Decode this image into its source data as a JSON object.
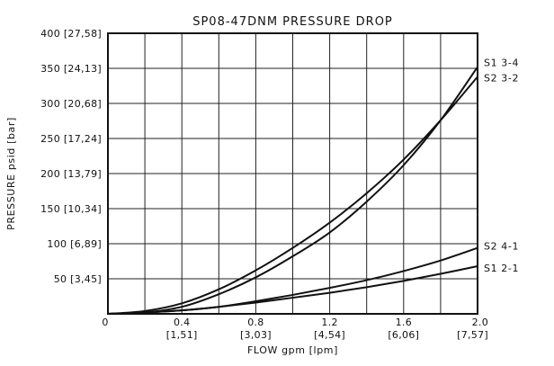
{
  "chart_data": {
    "type": "line",
    "title": "SP08-47DNM PRESSURE DROP",
    "xlabel": "FLOW gpm [lpm]",
    "ylabel": "PRESSURE psid [bar]",
    "xlim": [
      0,
      2.0
    ],
    "ylim": [
      0,
      400
    ],
    "grid": true,
    "x_ticks": [
      {
        "value": 0,
        "label": "0",
        "sublabel": ""
      },
      {
        "value": 0.4,
        "label": "0.4",
        "sublabel": "[1,51]"
      },
      {
        "value": 0.8,
        "label": "0.8",
        "sublabel": "[3,03]"
      },
      {
        "value": 1.2,
        "label": "1.2",
        "sublabel": "[4,54]"
      },
      {
        "value": 1.6,
        "label": "1.6",
        "sublabel": "[6,06]"
      },
      {
        "value": 2.0,
        "label": "2.0",
        "sublabel": "[7,57]"
      }
    ],
    "x_grid": [
      0.2,
      0.4,
      0.6,
      0.8,
      1.0,
      1.2,
      1.4,
      1.6,
      1.8
    ],
    "y_ticks": [
      {
        "value": 50,
        "label": "50 [3,45]"
      },
      {
        "value": 100,
        "label": "100 [6,89]"
      },
      {
        "value": 150,
        "label": "150 [10,34]"
      },
      {
        "value": 200,
        "label": "200 [13,79]"
      },
      {
        "value": 250,
        "label": "250 [17,24]"
      },
      {
        "value": 300,
        "label": "300 [20,68]"
      },
      {
        "value": 350,
        "label": "350 [24,13]"
      },
      {
        "value": 400,
        "label": "400 [27,58]"
      }
    ],
    "origin_label": "0",
    "series": [
      {
        "name": "S1 3-4",
        "x": [
          0,
          0.2,
          0.4,
          0.6,
          0.8,
          1.0,
          1.2,
          1.4,
          1.6,
          1.8,
          2.0
        ],
        "y": [
          0,
          2,
          10,
          28,
          52,
          82,
          116,
          160,
          212,
          276,
          352
        ]
      },
      {
        "name": "S2 3-2",
        "x": [
          0,
          0.2,
          0.4,
          0.6,
          0.8,
          1.0,
          1.2,
          1.4,
          1.6,
          1.8,
          2.0
        ],
        "y": [
          0,
          4,
          15,
          35,
          62,
          94,
          130,
          172,
          220,
          276,
          338
        ]
      },
      {
        "name": "S2 4-1",
        "x": [
          0,
          0.2,
          0.4,
          0.6,
          0.8,
          1.0,
          1.2,
          1.4,
          1.6,
          1.8,
          2.0
        ],
        "y": [
          0,
          2,
          5,
          10,
          18,
          27,
          37,
          48,
          61,
          76,
          94
        ]
      },
      {
        "name": "S1 2-1",
        "x": [
          0,
          0.2,
          0.4,
          0.6,
          0.8,
          1.0,
          1.2,
          1.4,
          1.6,
          1.8,
          2.0
        ],
        "y": [
          0,
          2,
          5,
          10,
          16,
          23,
          30,
          38,
          47,
          57,
          68
        ]
      }
    ]
  }
}
